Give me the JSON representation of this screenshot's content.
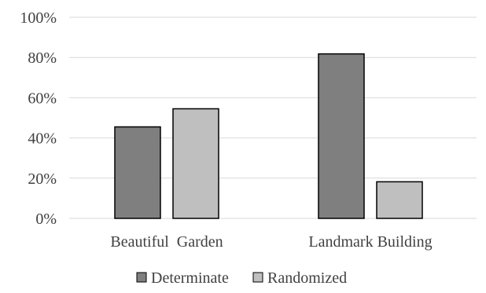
{
  "chart_data": {
    "type": "bar",
    "categories": [
      "Beautiful  Garden",
      "Landmark Building"
    ],
    "series": [
      {
        "name": "Determinate",
        "values": [
          45.5,
          81.8
        ]
      },
      {
        "name": "Randomized",
        "values": [
          54.5,
          18.2
        ]
      }
    ],
    "y_ticks": [
      "0%",
      "20%",
      "40%",
      "60%",
      "80%",
      "100%"
    ],
    "ylim": [
      0,
      100
    ],
    "y_unit": "%",
    "grid": true,
    "legend_position": "bottom",
    "colors": {
      "Determinate": "#7f7f7f",
      "Randomized": "#bfbfbf",
      "bar_stroke": "#000000",
      "grid": "#d9d9d9",
      "text": "#404040"
    }
  }
}
